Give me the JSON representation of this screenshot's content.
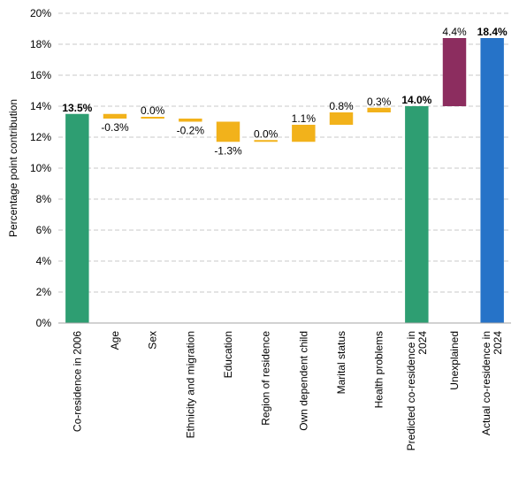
{
  "chart_data": {
    "type": "bar",
    "subtype": "waterfall",
    "ylabel": "Percentage point contribution",
    "ylim": [
      0,
      20
    ],
    "yticks": [
      "0%",
      "2%",
      "4%",
      "6%",
      "8%",
      "10%",
      "12%",
      "14%",
      "16%",
      "18%",
      "20%"
    ],
    "grid": true,
    "legend": "none",
    "colors": {
      "total_green": "#2e9e72",
      "component": "#f2b21b",
      "unexplained": "#8c2d5f",
      "actual": "#2673c8"
    },
    "bars": [
      {
        "category": "Co-residence in 2006",
        "kind": "total",
        "start": 0,
        "end": 13.5,
        "label": "13.5%",
        "color": "#2e9e72",
        "bold": true
      },
      {
        "category": "Age",
        "kind": "change",
        "start": 13.5,
        "end": 13.2,
        "label": "-0.3%",
        "color": "#f2b21b",
        "bold": false
      },
      {
        "category": "Sex",
        "kind": "change",
        "start": 13.2,
        "end": 13.2,
        "label": "0.0%",
        "color": "#f2b21b",
        "bold": false
      },
      {
        "category": "Ethnicity and migration",
        "kind": "change",
        "start": 13.2,
        "end": 13.0,
        "label": "-0.2%",
        "color": "#f2b21b",
        "bold": false
      },
      {
        "category": "Education",
        "kind": "change",
        "start": 13.0,
        "end": 11.7,
        "label": "-1.3%",
        "color": "#f2b21b",
        "bold": false
      },
      {
        "category": "Region of residence",
        "kind": "change",
        "start": 11.7,
        "end": 11.7,
        "label": "0.0%",
        "color": "#f2b21b",
        "bold": false
      },
      {
        "category": "Own dependent child",
        "kind": "change",
        "start": 11.7,
        "end": 12.8,
        "label": "1.1%",
        "color": "#f2b21b",
        "bold": false
      },
      {
        "category": "Marital status",
        "kind": "change",
        "start": 12.8,
        "end": 13.6,
        "label": "0.8%",
        "color": "#f2b21b",
        "bold": false
      },
      {
        "category": "Health problems",
        "kind": "change",
        "start": 13.6,
        "end": 13.9,
        "label": "0.3%",
        "color": "#f2b21b",
        "bold": false
      },
      {
        "category": "Predicted co-residence in 2024",
        "kind": "total",
        "start": 0,
        "end": 14.0,
        "label": "14.0%",
        "color": "#2e9e72",
        "bold": true
      },
      {
        "category": "Unexplained",
        "kind": "change",
        "start": 14.0,
        "end": 18.4,
        "label": "4.4%",
        "color": "#8c2d5f",
        "bold": false
      },
      {
        "category": "Actual co-residence in 2024",
        "kind": "total",
        "start": 0,
        "end": 18.4,
        "label": "18.4%",
        "color": "#2673c8",
        "bold": true
      }
    ]
  }
}
